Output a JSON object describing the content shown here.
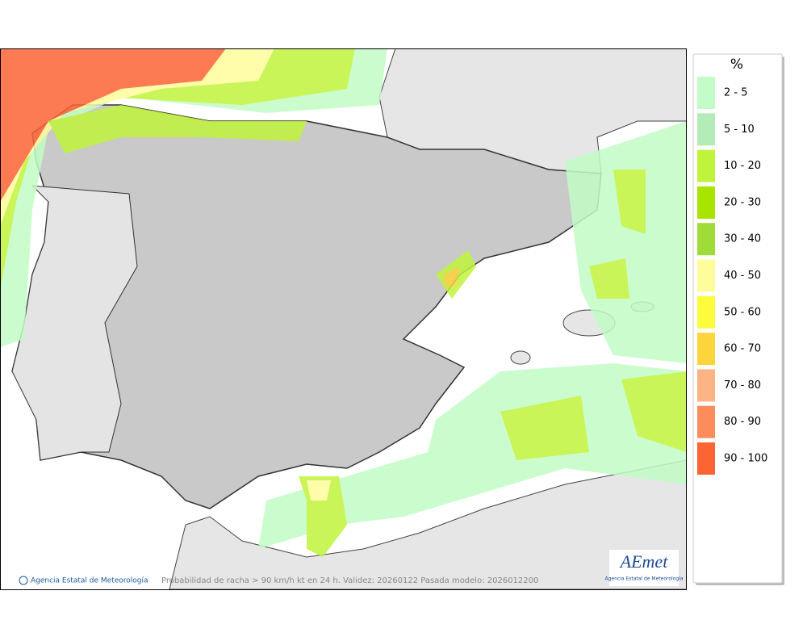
{
  "map": {
    "credit": "Agencia Estatal de Meteorología",
    "caption": "Probabilidad de racha > 90 km/h kt en 24 h. Validez: 20260122 Pasada modelo: 2026012200",
    "logo": {
      "mark": "AEmet",
      "name": "Agencia Estatal de Meteorología"
    }
  },
  "legend": {
    "title": "%",
    "items": [
      {
        "label": "2 - 5",
        "color": "#c2fcc6"
      },
      {
        "label": "5 - 10",
        "color": "#b4ecb8"
      },
      {
        "label": "10 - 20",
        "color": "#c0f43c"
      },
      {
        "label": "20 - 30",
        "color": "#a8e400"
      },
      {
        "label": "30 - 40",
        "color": "#a0dc38"
      },
      {
        "label": "40 - 50",
        "color": "#fffc9c"
      },
      {
        "label": "50 - 60",
        "color": "#fcfc3c"
      },
      {
        "label": "60 - 70",
        "color": "#fcd43c"
      },
      {
        "label": "70 - 80",
        "color": "#fcb484"
      },
      {
        "label": "80 - 90",
        "color": "#fc8c5c"
      },
      {
        "label": "90 - 100",
        "color": "#fc6434"
      }
    ]
  }
}
